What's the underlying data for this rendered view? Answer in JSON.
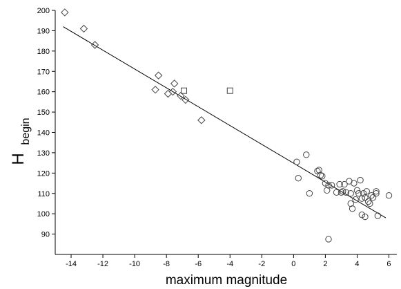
{
  "chart_data": {
    "type": "scatter",
    "xlabel": "maximum magnitude",
    "ylabel": "H",
    "ylabel_subscript": "begin",
    "xlim": [
      -15,
      6.5
    ],
    "ylim": [
      80,
      200
    ],
    "xticks": [
      -14,
      -12,
      -10,
      -8,
      -6,
      -4,
      -2,
      0,
      2,
      4,
      6
    ],
    "yticks": [
      90,
      100,
      110,
      120,
      130,
      140,
      150,
      160,
      170,
      180,
      190,
      200
    ],
    "grid": false,
    "series": [
      {
        "marker": "diamond",
        "points": [
          [
            -14.4,
            199
          ],
          [
            -13.2,
            191
          ],
          [
            -12.5,
            183
          ],
          [
            -8.5,
            168
          ],
          [
            -8.7,
            161
          ],
          [
            -7.9,
            159
          ],
          [
            -7.6,
            160
          ],
          [
            -7.5,
            164
          ],
          [
            -7.1,
            158
          ],
          [
            -6.8,
            156
          ],
          [
            -5.8,
            146
          ]
        ]
      },
      {
        "marker": "square",
        "points": [
          [
            -6.9,
            160.5
          ],
          [
            -4.0,
            160.5
          ]
        ]
      },
      {
        "marker": "circle",
        "points": [
          [
            0.2,
            125.5
          ],
          [
            0.3,
            117.5
          ],
          [
            0.8,
            129
          ],
          [
            1.0,
            110
          ],
          [
            1.5,
            121
          ],
          [
            1.6,
            121.5
          ],
          [
            1.7,
            119
          ],
          [
            1.8,
            118.5
          ],
          [
            2.0,
            115
          ],
          [
            2.1,
            111.5
          ],
          [
            2.2,
            114
          ],
          [
            2.4,
            114
          ],
          [
            2.2,
            87.5
          ],
          [
            2.7,
            110.5
          ],
          [
            2.9,
            114.5
          ],
          [
            3.0,
            110.5
          ],
          [
            3.1,
            111
          ],
          [
            3.2,
            114.5
          ],
          [
            3.3,
            110.5
          ],
          [
            3.5,
            116
          ],
          [
            3.6,
            105
          ],
          [
            3.6,
            110
          ],
          [
            3.7,
            102.5
          ],
          [
            3.8,
            115
          ],
          [
            3.9,
            107
          ],
          [
            4.0,
            111.5
          ],
          [
            4.1,
            110
          ],
          [
            4.2,
            116.5
          ],
          [
            4.3,
            99.5
          ],
          [
            4.3,
            107.5
          ],
          [
            4.4,
            110
          ],
          [
            4.5,
            98.5
          ],
          [
            4.5,
            108
          ],
          [
            4.6,
            111
          ],
          [
            4.7,
            106
          ],
          [
            4.8,
            105
          ],
          [
            4.9,
            109
          ],
          [
            5.0,
            108
          ],
          [
            5.2,
            111
          ],
          [
            5.2,
            110
          ],
          [
            5.3,
            99
          ],
          [
            6.0,
            109
          ]
        ]
      }
    ],
    "trendline": {
      "x": [
        -14.5,
        5.8
      ],
      "y": [
        192,
        98
      ]
    }
  }
}
